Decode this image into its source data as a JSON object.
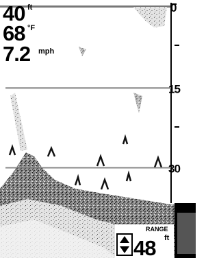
{
  "readouts": [
    {
      "value": "40",
      "unit": "ft"
    },
    {
      "value": "68",
      "unit": "°F"
    },
    {
      "value": "7.2",
      "unit": "mph"
    }
  ],
  "depth_scale": {
    "ticks": [
      0,
      15,
      30
    ]
  },
  "range": {
    "label": "RANGE",
    "value": "48",
    "unit": "ft"
  }
}
